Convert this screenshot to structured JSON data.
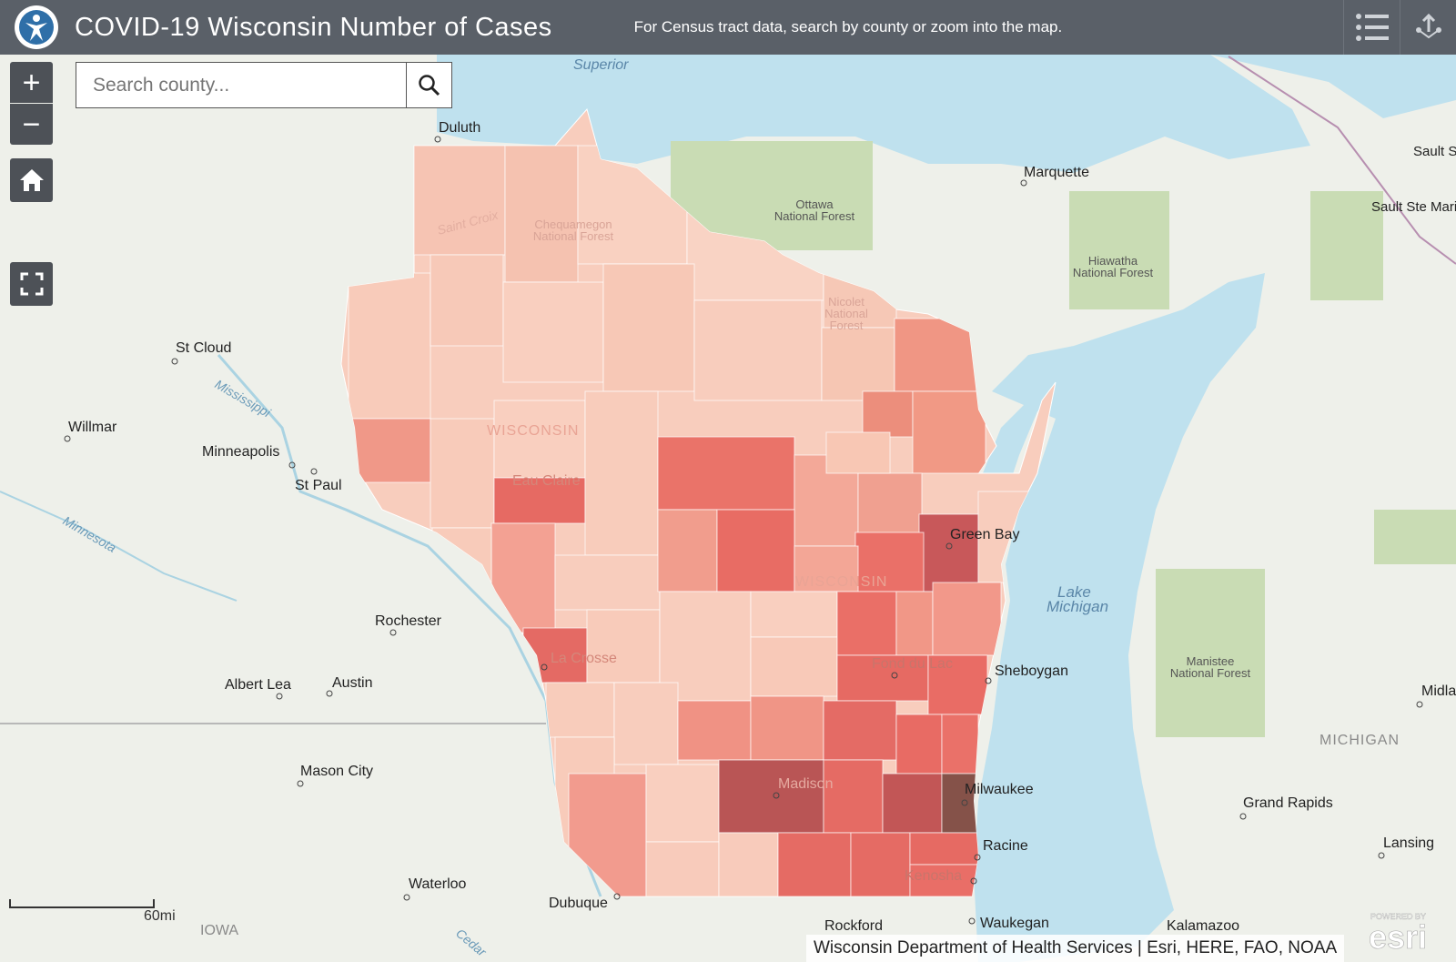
{
  "header": {
    "title": "COVID-19 Wisconsin Number of Cases",
    "subtitle": "For Census tract data, search by county or zoom into the map."
  },
  "search": {
    "placeholder": "Search county..."
  },
  "controls": {
    "zoom_in": "+",
    "zoom_out": "−"
  },
  "scale": {
    "label": "60mi"
  },
  "attribution": "Wisconsin Department of Health Services | Esri, HERE, FAO, NOAA",
  "esri": {
    "powered_by": "POWERED BY",
    "logo": "esri"
  },
  "map_labels": {
    "wisconsin": "WISCONSIN",
    "wisconsin2": "WISCONSIN",
    "michigan": "MICHIGAN",
    "iowa": "IOWA",
    "lake_superior": "Superior",
    "lake_michigan_1": "Lake",
    "lake_michigan_2": "Michigan",
    "ottawa": "Ottawa National Forest",
    "hiawatha": "Hiawatha National Forest",
    "nicolet": "Nicolet National Forest",
    "chequamegon": "Chequamegon National Forest",
    "manistee": "Manistee National Forest",
    "mississippi": "Mississippi",
    "minnesota_river": "Minnesota",
    "saint_croix": "Saint Croix",
    "cedar": "Cedar"
  },
  "cities": [
    "Duluth",
    "Marquette",
    "Sault Ste Marie",
    "Sault Ste Marie",
    "St Cloud",
    "Willmar",
    "Minneapolis",
    "St Paul",
    "Eau Claire",
    "Green Bay",
    "Rochester",
    "La Crosse",
    "Fond du Lac",
    "Sheboygan",
    "Albert Lea",
    "Austin",
    "Mason City",
    "Madison",
    "Milwaukee",
    "Grand Rapids",
    "Racine",
    "Lansing",
    "Kenosha",
    "Waterloo",
    "Dubuque",
    "Rockford",
    "Waukegan",
    "Kalamazoo",
    "Midla"
  ],
  "colors": {
    "land": "#eef0ea",
    "water": "#bfe1ee",
    "forest": "#c9dcb4",
    "case_1": "#f8cdbd",
    "case_2": "#f3a292",
    "case_3": "#ec7a6e",
    "case_4": "#d95c5c",
    "case_5": "#b74f50",
    "case_6": "#85504a"
  }
}
